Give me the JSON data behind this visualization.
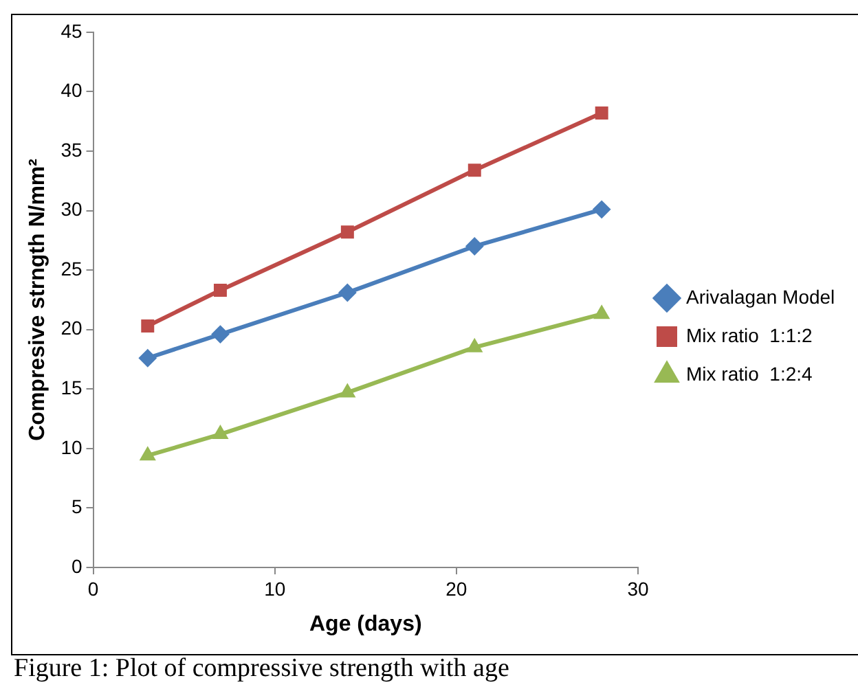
{
  "chart_data": {
    "type": "line",
    "xlabel": "Age (days)",
    "ylabel": "Compresive strngth N/mm²",
    "x": [
      3,
      7,
      14,
      21,
      28
    ],
    "xlim": [
      0,
      30
    ],
    "xticks": [
      0,
      10,
      20,
      30
    ],
    "ylim": [
      0,
      45
    ],
    "yticks": [
      0,
      5,
      10,
      15,
      20,
      25,
      30,
      35,
      40,
      45
    ],
    "series": [
      {
        "name": "Arivalagan Model",
        "color": "#4a7ebb",
        "marker": "diamond",
        "values": [
          17.6,
          19.6,
          23.1,
          27.0,
          30.1
        ]
      },
      {
        "name": "Mix ratio  1:1:2",
        "color": "#be4b48",
        "marker": "square",
        "values": [
          20.3,
          23.3,
          28.2,
          33.4,
          38.2
        ]
      },
      {
        "name": "Mix ratio  1:2:4",
        "color": "#98b954",
        "marker": "triangle",
        "values": [
          9.4,
          11.2,
          14.7,
          18.5,
          21.3
        ]
      }
    ],
    "grid": false,
    "legend": "right",
    "line_style": "solid",
    "annotations": [
      "Figure 1: Plot of compressive strength with age"
    ]
  }
}
